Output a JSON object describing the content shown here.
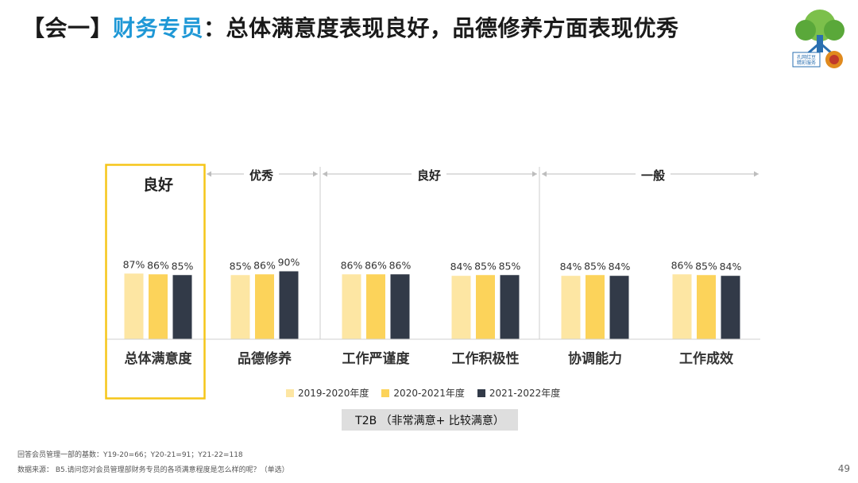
{
  "header": {
    "title_prefix": "【会一】",
    "title_blue": "财务专员",
    "title_rest": "：总体满意度表现良好，品德修养方面表现优秀"
  },
  "logo": {
    "text": "孔网红豆\n精彩服务"
  },
  "colors": {
    "s2019": "#fde6a3",
    "s2020": "#fcd35a",
    "s2021": "#323a48",
    "highlight": "#f5c518",
    "accent": "#1f98d6"
  },
  "groups": [
    {
      "label": "良好",
      "highlighted": true
    },
    {
      "label": "优秀"
    },
    {
      "label": "良好"
    },
    {
      "label": "一般"
    }
  ],
  "chart_data": {
    "type": "bar",
    "categories": [
      "总体满意度",
      "品德修养",
      "工作严谨度",
      "工作积极性",
      "协调能力",
      "工作成效"
    ],
    "series": [
      {
        "name": "2019-2020年度",
        "values": [
          87,
          85,
          86,
          84,
          84,
          86
        ]
      },
      {
        "name": "2020-2021年度",
        "values": [
          86,
          86,
          86,
          85,
          85,
          85
        ]
      },
      {
        "name": "2021-2022年度",
        "values": [
          85,
          90,
          86,
          85,
          84,
          84
        ]
      }
    ],
    "value_suffix": "%",
    "xlabel": "T2B （非常满意+ 比较满意）",
    "ylabel": "",
    "ylim": [
      0,
      100
    ]
  },
  "legend_items": [
    "2019-2020年度",
    "2020-2021年度",
    "2021-2022年度"
  ],
  "t2b_label": "T2B （非常满意+ 比较满意）",
  "footnotes": [
    "回答会员管理一部的基数：Y19-20=66；Y20-21=91；Y21-22=118",
    "数据来源：  B5.请问您对会员管理部财务专员的各项满意程度是怎么样的呢？（单选）"
  ],
  "page_number": "49"
}
